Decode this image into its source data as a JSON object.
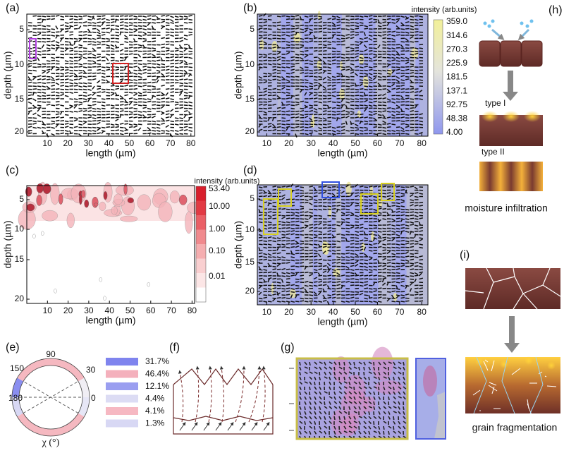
{
  "panels": [
    {
      "label": "(a)",
      "xlabel": "length (µm)",
      "ylabel": "depth (µm)",
      "xticks": [
        "10",
        "20",
        "30",
        "40",
        "50",
        "60",
        "70",
        "80"
      ],
      "yticks": [
        "5",
        "10",
        "15",
        "20"
      ]
    },
    {
      "label": "(b)",
      "xlabel": "length (µm)",
      "ylabel": "depth (µm)",
      "xticks": [
        "10",
        "20",
        "30",
        "40",
        "50",
        "60",
        "70",
        "80"
      ],
      "yticks": [
        "5",
        "10",
        "15",
        "20"
      ],
      "colorbar": {
        "title": "intensity (arb.units)",
        "ticks": [
          "359.0",
          "314.6",
          "270.3",
          "225.9",
          "181.5",
          "137.1",
          "92.75",
          "48.38",
          "4.00"
        ]
      }
    },
    {
      "label": "(c)",
      "xlabel": "length (µm)",
      "ylabel": "depth (µm)",
      "xticks": [
        "10",
        "20",
        "30",
        "40",
        "50",
        "60",
        "70",
        "80"
      ],
      "yticks": [
        "5",
        "10",
        "15",
        "20"
      ],
      "colorbar": {
        "title": "intensity (arb.units)",
        "ticks": [
          "53.40",
          "10.00",
          "1.00",
          "0.10",
          "0.01"
        ]
      }
    },
    {
      "label": "(d)",
      "xlabel": "length (µm)",
      "ylabel": "depth (µm)",
      "xticks": [
        "10",
        "20",
        "30",
        "40",
        "50",
        "60",
        "70",
        "80"
      ],
      "yticks": [
        "5",
        "10",
        "15",
        "20"
      ]
    },
    {
      "label": "(e)",
      "angle_labels": [
        "90",
        "30",
        "0",
        "180",
        "150"
      ],
      "xlabel": "χ (°)",
      "legend": [
        "31.7%",
        "46.4%",
        "12.1%",
        "4.4%",
        "4.1%",
        "1.3%"
      ]
    },
    {
      "label": "(f)"
    },
    {
      "label": "(g)"
    },
    {
      "label": "(h)",
      "texts": [
        "type I",
        "type II",
        "moisture infiltration"
      ]
    },
    {
      "label": "(i)",
      "caption": "grain fragmentation"
    }
  ]
}
